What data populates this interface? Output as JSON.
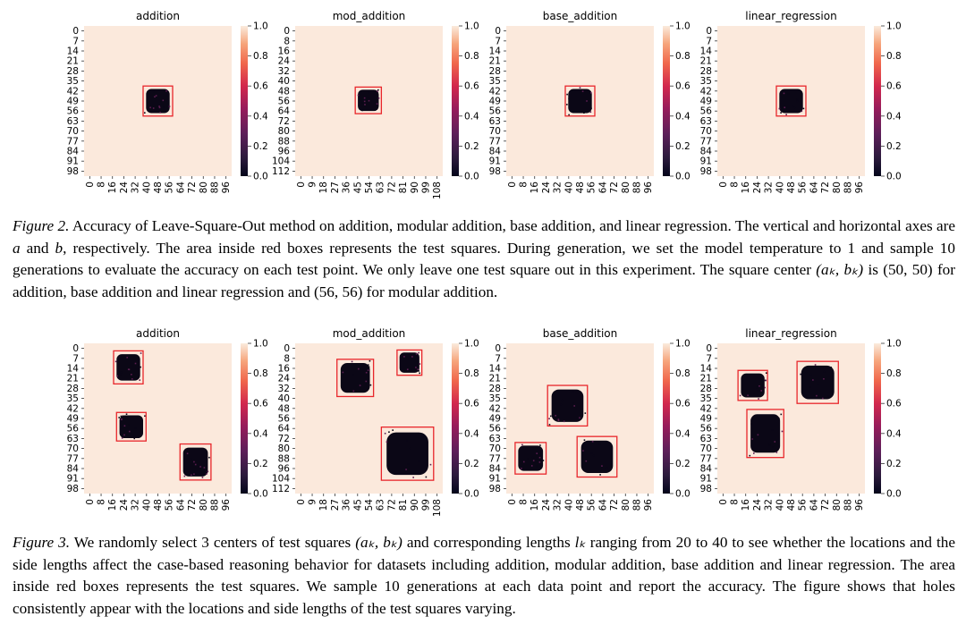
{
  "chart_data": [
    {
      "type": "heatmap",
      "figure": "Figure 2",
      "title": "addition",
      "x_ticks": [
        "0",
        "8",
        "16",
        "24",
        "32",
        "40",
        "48",
        "56",
        "64",
        "72",
        "80",
        "88",
        "96"
      ],
      "y_ticks": [
        "0",
        "7",
        "14",
        "21",
        "28",
        "35",
        "42",
        "49",
        "56",
        "63",
        "70",
        "77",
        "84",
        "91",
        "98"
      ],
      "x_max": 100,
      "y_max": 100,
      "colorbar_ticks": [
        "0.0",
        "0.2",
        "0.4",
        "0.6",
        "0.8",
        "1.0"
      ],
      "colorbar_range": [
        0,
        1
      ],
      "test_squares": [
        {
          "a_range": [
            40,
            60
          ],
          "b_range": [
            40,
            60
          ],
          "accuracy": 0.0
        }
      ],
      "background_accuracy": 1.0
    },
    {
      "type": "heatmap",
      "figure": "Figure 2",
      "title": "mod_addition",
      "x_ticks": [
        "0",
        "9",
        "18",
        "27",
        "36",
        "45",
        "54",
        "63",
        "72",
        "81",
        "90",
        "99",
        "108"
      ],
      "y_ticks": [
        "0",
        "8",
        "16",
        "24",
        "32",
        "40",
        "48",
        "56",
        "64",
        "72",
        "80",
        "88",
        "96",
        "104",
        "112"
      ],
      "x_max": 113,
      "y_max": 113,
      "colorbar_ticks": [
        "0.0",
        "0.2",
        "0.4",
        "0.6",
        "0.8",
        "1.0"
      ],
      "colorbar_range": [
        0,
        1
      ],
      "test_squares": [
        {
          "a_range": [
            46,
            66
          ],
          "b_range": [
            46,
            66
          ],
          "accuracy": 0.0
        }
      ],
      "background_accuracy": 1.0
    },
    {
      "type": "heatmap",
      "figure": "Figure 2",
      "title": "base_addition",
      "x_ticks": [
        "0",
        "8",
        "16",
        "24",
        "32",
        "40",
        "48",
        "56",
        "64",
        "72",
        "80",
        "88",
        "96"
      ],
      "y_ticks": [
        "0",
        "7",
        "14",
        "21",
        "28",
        "35",
        "42",
        "49",
        "56",
        "63",
        "70",
        "77",
        "84",
        "91",
        "98"
      ],
      "x_max": 100,
      "y_max": 100,
      "colorbar_ticks": [
        "0.0",
        "0.2",
        "0.4",
        "0.6",
        "0.8",
        "1.0"
      ],
      "colorbar_range": [
        0,
        1
      ],
      "test_squares": [
        {
          "a_range": [
            40,
            60
          ],
          "b_range": [
            40,
            60
          ],
          "accuracy": 0.0
        }
      ],
      "background_accuracy": 1.0
    },
    {
      "type": "heatmap",
      "figure": "Figure 2",
      "title": "linear_regression",
      "x_ticks": [
        "0",
        "8",
        "16",
        "24",
        "32",
        "40",
        "48",
        "56",
        "64",
        "72",
        "80",
        "88",
        "96"
      ],
      "y_ticks": [
        "0",
        "7",
        "14",
        "21",
        "28",
        "35",
        "42",
        "49",
        "56",
        "63",
        "70",
        "77",
        "84",
        "91",
        "98"
      ],
      "x_max": 100,
      "y_max": 100,
      "colorbar_ticks": [
        "0.0",
        "0.2",
        "0.4",
        "0.6",
        "0.8",
        "1.0"
      ],
      "colorbar_range": [
        0,
        1
      ],
      "test_squares": [
        {
          "a_range": [
            40,
            60
          ],
          "b_range": [
            40,
            60
          ],
          "accuracy": 0.1
        }
      ],
      "background_accuracy": 1.0
    },
    {
      "type": "heatmap",
      "figure": "Figure 3",
      "title": "addition",
      "x_ticks": [
        "0",
        "8",
        "16",
        "24",
        "32",
        "40",
        "48",
        "56",
        "64",
        "72",
        "80",
        "88",
        "96"
      ],
      "y_ticks": [
        "0",
        "7",
        "14",
        "21",
        "28",
        "35",
        "42",
        "49",
        "56",
        "63",
        "70",
        "77",
        "84",
        "91",
        "98"
      ],
      "x_max": 100,
      "y_max": 100,
      "colorbar_ticks": [
        "0.0",
        "0.2",
        "0.4",
        "0.6",
        "0.8",
        "1.0"
      ],
      "colorbar_range": [
        0,
        1
      ],
      "test_squares": [
        {
          "a_range": [
            5,
            27
          ],
          "b_range": [
            20,
            40
          ],
          "accuracy": 0.0
        },
        {
          "a_range": [
            46,
            65
          ],
          "b_range": [
            22,
            42
          ],
          "accuracy": 0.0
        },
        {
          "a_range": [
            67,
            91
          ],
          "b_range": [
            65,
            86
          ],
          "accuracy": 0.0
        }
      ],
      "background_accuracy": 1.0
    },
    {
      "type": "heatmap",
      "figure": "Figure 3",
      "title": "mod_addition",
      "x_ticks": [
        "0",
        "9",
        "18",
        "27",
        "36",
        "45",
        "54",
        "63",
        "72",
        "81",
        "90",
        "99",
        "108"
      ],
      "y_ticks": [
        "0",
        "8",
        "16",
        "24",
        "32",
        "40",
        "48",
        "56",
        "64",
        "72",
        "80",
        "88",
        "96",
        "104",
        "112"
      ],
      "x_max": 113,
      "y_max": 113,
      "colorbar_ticks": [
        "0.0",
        "0.2",
        "0.4",
        "0.6",
        "0.8",
        "1.0"
      ],
      "colorbar_range": [
        0,
        1
      ],
      "test_squares": [
        {
          "a_range": [
            12,
            40
          ],
          "b_range": [
            32,
            60
          ],
          "accuracy": 0.0
        },
        {
          "a_range": [
            5,
            24
          ],
          "b_range": [
            78,
            97
          ],
          "accuracy": 0.0
        },
        {
          "a_range": [
            63,
            103
          ],
          "b_range": [
            66,
            106
          ],
          "accuracy": 0.0
        }
      ],
      "background_accuracy": 1.0
    },
    {
      "type": "heatmap",
      "figure": "Figure 3",
      "title": "base_addition",
      "x_ticks": [
        "0",
        "8",
        "16",
        "24",
        "32",
        "40",
        "48",
        "56",
        "64",
        "72",
        "80",
        "88",
        "96"
      ],
      "y_ticks": [
        "0",
        "7",
        "14",
        "21",
        "28",
        "35",
        "42",
        "49",
        "56",
        "63",
        "70",
        "77",
        "84",
        "91",
        "98"
      ],
      "x_max": 100,
      "y_max": 100,
      "colorbar_ticks": [
        "0.0",
        "0.2",
        "0.4",
        "0.6",
        "0.8",
        "1.0"
      ],
      "colorbar_range": [
        0,
        1
      ],
      "test_squares": [
        {
          "a_range": [
            28,
            55
          ],
          "b_range": [
            28,
            55
          ],
          "accuracy": 0.0
        },
        {
          "a_range": [
            66,
            87
          ],
          "b_range": [
            6,
            27
          ],
          "accuracy": 0.0
        },
        {
          "a_range": [
            62,
            89
          ],
          "b_range": [
            48,
            75
          ],
          "accuracy": 0.0
        }
      ],
      "background_accuracy": 1.0
    },
    {
      "type": "heatmap",
      "figure": "Figure 3",
      "title": "linear_regression",
      "x_ticks": [
        "0",
        "8",
        "16",
        "24",
        "32",
        "40",
        "48",
        "56",
        "64",
        "72",
        "80",
        "88",
        "96"
      ],
      "y_ticks": [
        "0",
        "7",
        "14",
        "21",
        "28",
        "35",
        "42",
        "49",
        "56",
        "63",
        "70",
        "77",
        "84",
        "91",
        "98"
      ],
      "x_max": 100,
      "y_max": 100,
      "colorbar_ticks": [
        "0.0",
        "0.2",
        "0.4",
        "0.6",
        "0.8",
        "1.0"
      ],
      "colorbar_range": [
        0,
        1
      ],
      "test_squares": [
        {
          "a_range": [
            18,
            38
          ],
          "b_range": [
            14,
            34
          ],
          "accuracy": 0.0
        },
        {
          "a_range": [
            12,
            40
          ],
          "b_range": [
            54,
            82
          ],
          "accuracy": 0.0
        },
        {
          "a_range": [
            44,
            76
          ],
          "b_range": [
            20,
            45
          ],
          "accuracy": 0.0
        }
      ],
      "background_accuracy": 1.0
    }
  ],
  "captions": {
    "fig2": {
      "label": "Figure 2.",
      "p1": " Accuracy of Leave-Square-Out method on addition, modular addition, base addition, and linear regression. The vertical and horizontal axes are ",
      "var_a": "a",
      "p2": " and ",
      "var_b": "b",
      "p3": ", respectively. The area inside red boxes represents the test squares. During generation, we set the model temperature to 1 and sample 10 generations to evaluate the accuracy on each test point. We only leave one test square out in this experiment. The square center ",
      "center": "(aₖ, bₖ)",
      "p4": " is (50, 50) for addition, base addition and linear regression and (56, 56) for modular addition."
    },
    "fig3": {
      "label": "Figure 3.",
      "p1": " We randomly select 3 centers of test squares ",
      "center": "(aₖ, bₖ)",
      "p2": " and corresponding lengths ",
      "lk": "lₖ",
      "p3": " ranging from 20 to 40 to see whether the locations and the side lengths affect the case-based reasoning behavior for datasets including addition, modular addition, base addition and linear regression. The area inside red boxes represents the test squares. We sample 10 generations at each data point and report the accuracy. The figure shows that holes consistently appear with the locations and side lengths of the test squares varying."
    }
  },
  "colors": {
    "high": "#fbe9dc",
    "low": "#0b0716",
    "box": "#e8262b"
  }
}
